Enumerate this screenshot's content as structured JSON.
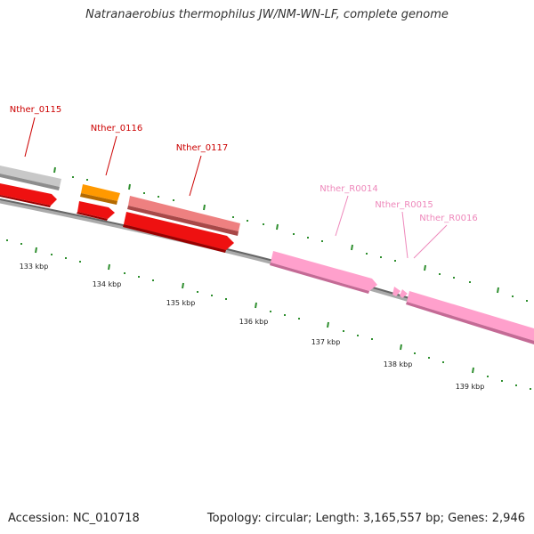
{
  "title": "Natranaerobius thermophilus JW/NM-WN-LF, complete genome",
  "footer": {
    "accession": "Accession: NC_010718",
    "info": "Topology: circular; Length: 3,165,557 bp; Genes: 2,946"
  },
  "colors": {
    "backbone": "#777777",
    "tick": "#2f8f2f",
    "label_dark_red": "#cc0000",
    "label_pink": "#ee88bb",
    "gene_red": "#ee1111",
    "gene_orange": "#ff9900",
    "gene_salmon": "#ee8080",
    "gene_pink": "#ffa0cc",
    "gene_grey": "#c8c8c8"
  },
  "gene_labels": [
    "Nther_0115",
    "Nther_0116",
    "Nther_0117",
    "Nther_R0014",
    "Nther_R0015",
    "Nther_R0016"
  ],
  "kbp_labels": [
    "133 kbp",
    "134 kbp",
    "135 kbp",
    "136 kbp",
    "137 kbp",
    "138 kbp",
    "139 kbp"
  ]
}
